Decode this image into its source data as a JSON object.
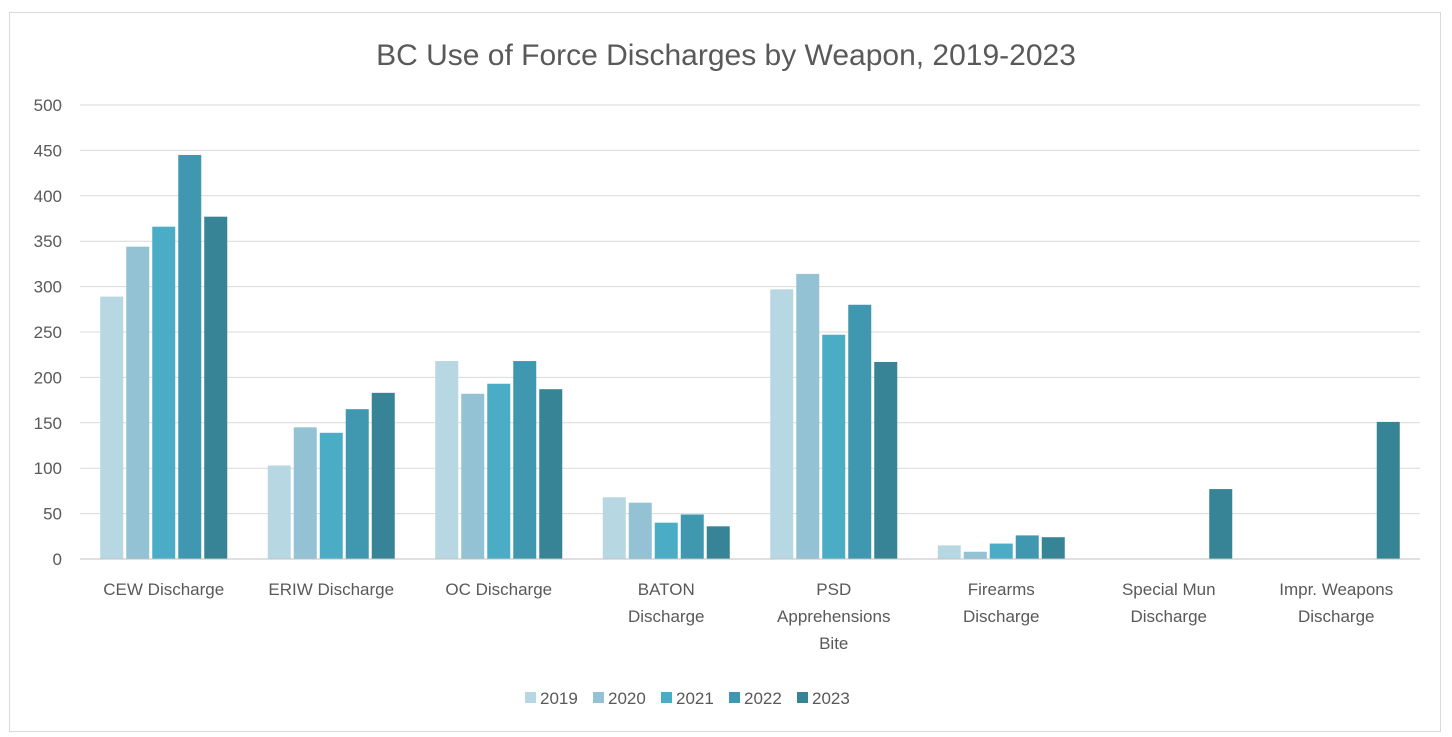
{
  "chart_data": {
    "type": "bar",
    "title": "BC Use of Force Discharges by Weapon, 2019-2023",
    "xlabel": "",
    "ylabel": "",
    "ylim": [
      0,
      500
    ],
    "yticks": [
      0,
      50,
      100,
      150,
      200,
      250,
      300,
      350,
      400,
      450,
      500
    ],
    "grid": true,
    "legend_position": "bottom",
    "categories": [
      [
        "CEW Discharge"
      ],
      [
        "ERIW Discharge"
      ],
      [
        "OC Discharge"
      ],
      [
        "BATON",
        "Discharge"
      ],
      [
        "PSD",
        "Apprehensions",
        "Bite"
      ],
      [
        "Firearms",
        "Discharge"
      ],
      [
        "Special Mun",
        "Discharge"
      ],
      [
        "Impr. Weapons",
        "Discharge"
      ]
    ],
    "series": [
      {
        "name": "2019",
        "color": "#b7d7e3",
        "values": [
          289,
          103,
          218,
          68,
          297,
          15,
          0,
          0
        ]
      },
      {
        "name": "2020",
        "color": "#92c2d4",
        "values": [
          344,
          145,
          182,
          62,
          314,
          8,
          0,
          0
        ]
      },
      {
        "name": "2021",
        "color": "#4bacc6",
        "values": [
          366,
          139,
          193,
          40,
          247,
          17,
          0,
          0
        ]
      },
      {
        "name": "2022",
        "color": "#4098b0",
        "values": [
          445,
          165,
          218,
          49,
          280,
          26,
          0,
          0
        ]
      },
      {
        "name": "2023",
        "color": "#368496",
        "values": [
          377,
          183,
          187,
          36,
          217,
          24,
          77,
          151
        ]
      }
    ]
  }
}
